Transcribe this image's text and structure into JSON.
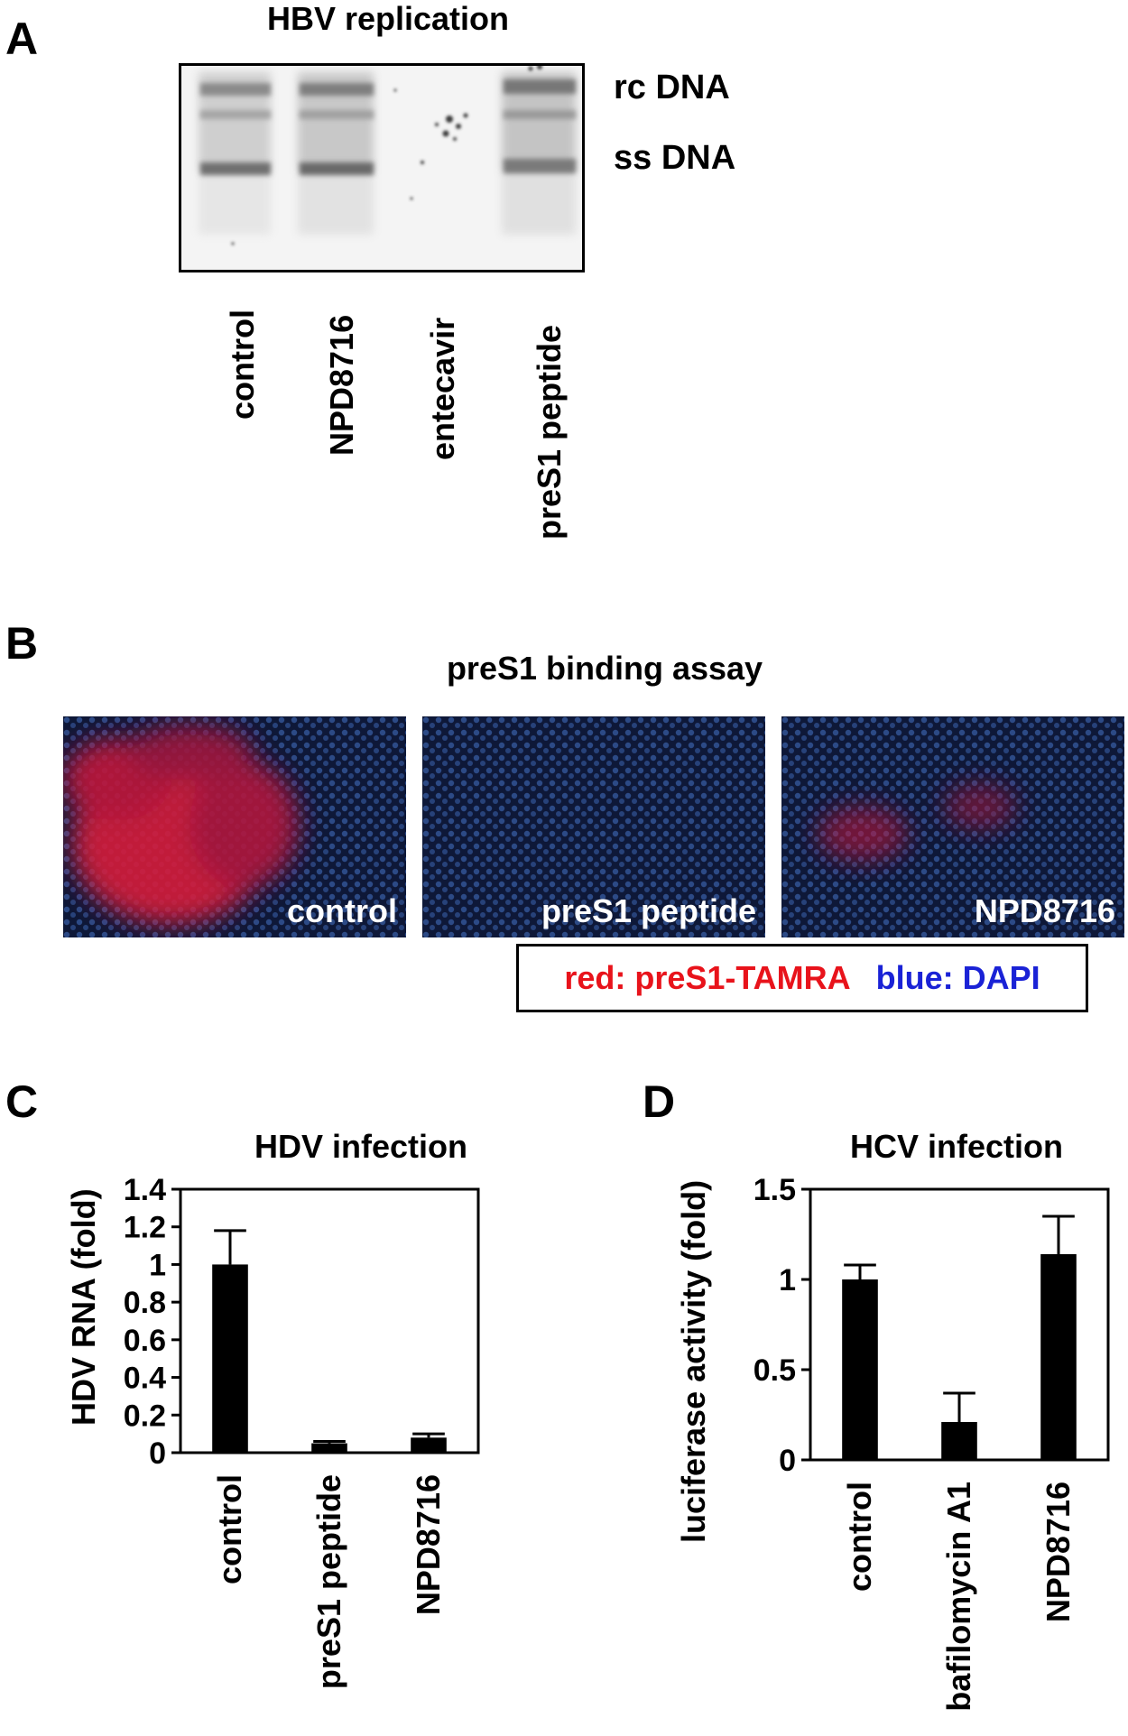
{
  "panel_a": {
    "letter": "A",
    "title": "HBV replication",
    "bands": [
      "rc DNA",
      "ss DNA"
    ],
    "lanes": [
      "control",
      "NPD8716",
      "entecavir",
      "preS1 peptide"
    ]
  },
  "panel_b": {
    "letter": "B",
    "title": "preS1 binding assay",
    "images": [
      "control",
      "preS1 peptide",
      "NPD8716"
    ],
    "legend_red": "red: preS1-TAMRA",
    "legend_blue": "blue: DAPI",
    "colors": {
      "red": "#e8131b",
      "blue": "#1a22d6"
    }
  },
  "chart_data": [
    {
      "type": "bar",
      "panel": "C",
      "title": "HDV infection",
      "ylabel": "HDV RNA (fold)",
      "xlabel": "",
      "categories": [
        "control",
        "preS1 peptide",
        "NPD8716"
      ],
      "values": [
        1.0,
        0.05,
        0.08
      ],
      "errors": [
        0.18,
        0.01,
        0.02
      ],
      "ylim": [
        0,
        1.4
      ],
      "yticks": [
        0,
        0.2,
        0.4,
        0.6,
        0.8,
        1,
        1.2,
        1.4
      ],
      "ytick_labels": [
        "0",
        "0.2",
        "0.4",
        "0.6",
        "0.8",
        "1",
        "1.2",
        "1.4"
      ],
      "bar_color": "#000000",
      "grid": false
    },
    {
      "type": "bar",
      "panel": "D",
      "title": "HCV infection",
      "ylabel": "luciferase activity (fold)",
      "xlabel": "",
      "categories": [
        "control",
        "bafilomycin A1",
        "NPD8716"
      ],
      "values": [
        1.0,
        0.21,
        1.14
      ],
      "errors": [
        0.08,
        0.16,
        0.21
      ],
      "ylim": [
        0,
        1.5
      ],
      "yticks": [
        0,
        0.5,
        1,
        1.5
      ],
      "ytick_labels": [
        "0",
        "0.5",
        "1",
        "1.5"
      ],
      "bar_color": "#000000",
      "grid": false
    }
  ]
}
